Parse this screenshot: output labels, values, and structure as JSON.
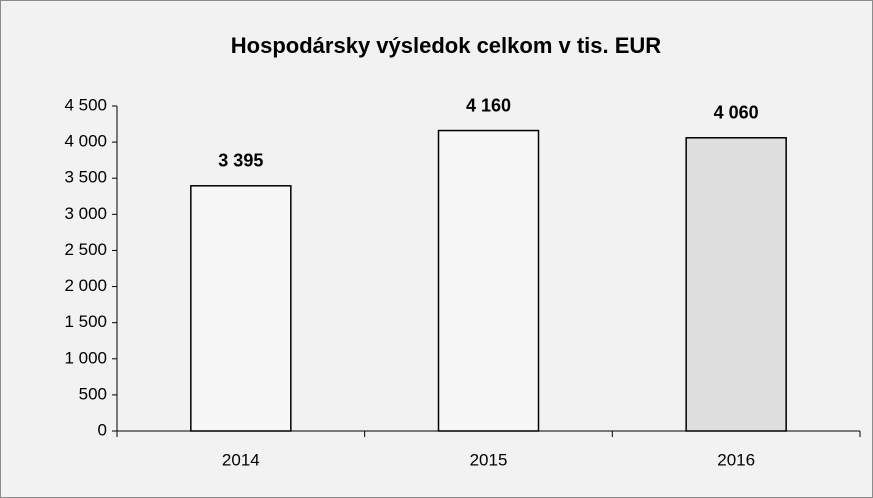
{
  "chart_data": {
    "type": "bar",
    "title": "Hospodársky výsledok celkom v tis. EUR",
    "categories": [
      "2014",
      "2015",
      "2016"
    ],
    "values": [
      3395,
      4160,
      4060
    ],
    "value_labels": [
      "3 395",
      "4 160",
      "4 060"
    ],
    "colors": [
      "#f7f7f7",
      "#f7f7f7",
      "#dedede"
    ],
    "ylim": [
      0,
      4500
    ],
    "yticks": [
      0,
      500,
      {
        "value": 1000,
        "label": "1 000"
      },
      {
        "value": 1500,
        "label": "1 500"
      },
      {
        "value": 2000,
        "label": "2 000"
      },
      {
        "value": 2500,
        "label": "2 500"
      },
      {
        "value": 3000,
        "label": "3 000"
      },
      {
        "value": 3500,
        "label": "3 500"
      },
      {
        "value": 4000,
        "label": "4 000"
      },
      {
        "value": 4500,
        "label": "4 500"
      }
    ],
    "grid": false
  }
}
